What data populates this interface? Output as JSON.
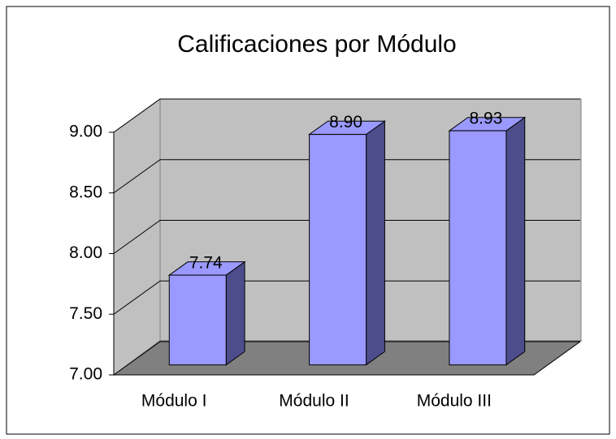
{
  "chart_data": {
    "type": "bar3d",
    "title": "Calificaciones por Módulo",
    "categories": [
      "Módulo I",
      "Módulo II",
      "Módulo III"
    ],
    "values": [
      7.74,
      8.9,
      8.93
    ],
    "value_labels": [
      "7.74",
      "8.90",
      "8.93"
    ],
    "color": "#9999ff",
    "ylim": [
      7,
      9
    ],
    "yticks": [
      {
        "value": 7,
        "label": "7.00"
      },
      {
        "value": 7.5,
        "label": "7.50"
      },
      {
        "value": 8,
        "label": "8.00"
      },
      {
        "value": 8.5,
        "label": "8.50"
      },
      {
        "value": 9,
        "label": "9.00"
      }
    ],
    "grid": true
  }
}
